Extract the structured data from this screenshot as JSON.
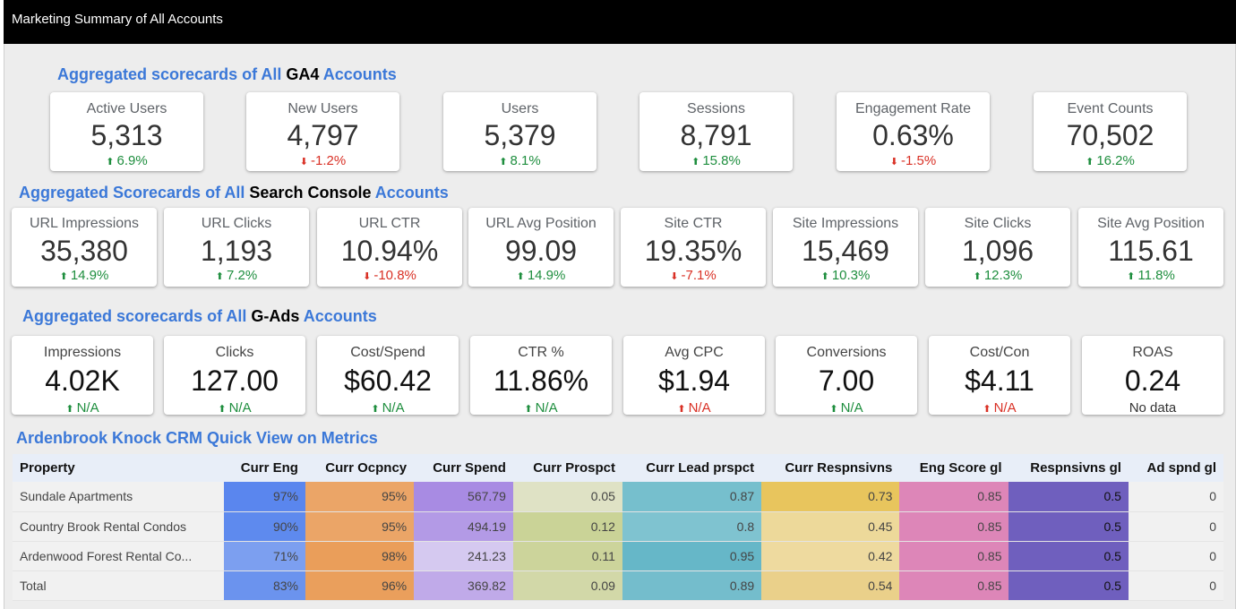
{
  "header": {
    "title": "Marketing Summary of All Accounts"
  },
  "ga4": {
    "title_pre": "Aggregated scorecards of All ",
    "title_hl": "GA4",
    "title_post": " Accounts",
    "cards": [
      {
        "label": "Active Users",
        "value": "5,313",
        "delta": "6.9%",
        "dir": "up"
      },
      {
        "label": "New Users",
        "value": "4,797",
        "delta": "-1.2%",
        "dir": "down"
      },
      {
        "label": "Users",
        "value": "5,379",
        "delta": "8.1%",
        "dir": "up"
      },
      {
        "label": "Sessions",
        "value": "8,791",
        "delta": "15.8%",
        "dir": "up"
      },
      {
        "label": "Engagement Rate",
        "value": "0.63%",
        "delta": "-1.5%",
        "dir": "down"
      },
      {
        "label": "Event Counts",
        "value": "70,502",
        "delta": "16.2%",
        "dir": "up"
      }
    ]
  },
  "gsc": {
    "title_pre": "Aggregated Scorecards of All ",
    "title_hl": "Search Console",
    "title_post": " Accounts",
    "cards": [
      {
        "label": "URL Impressions",
        "value": "35,380",
        "delta": "14.9%",
        "dir": "up"
      },
      {
        "label": "URL Clicks",
        "value": "1,193",
        "delta": "7.2%",
        "dir": "up"
      },
      {
        "label": "URL CTR",
        "value": "10.94%",
        "delta": "-10.8%",
        "dir": "down"
      },
      {
        "label": "URL Avg Position",
        "value": "99.09",
        "delta": "14.9%",
        "dir": "up"
      },
      {
        "label": "Site CTR",
        "value": "19.35%",
        "delta": "-7.1%",
        "dir": "down"
      },
      {
        "label": "Site Impressions",
        "value": "15,469",
        "delta": "10.3%",
        "dir": "up"
      },
      {
        "label": "Site Clicks",
        "value": "1,096",
        "delta": "12.3%",
        "dir": "up"
      },
      {
        "label": "Site Avg Position",
        "value": "115.61",
        "delta": "11.8%",
        "dir": "up"
      }
    ]
  },
  "gads": {
    "title_pre": "Aggregated scorecards of All ",
    "title_hl": "G-Ads",
    "title_post": " Accounts",
    "cards": [
      {
        "label": "Impressions",
        "value": "4.02K",
        "delta": "N/A",
        "dir": "up"
      },
      {
        "label": "Clicks",
        "value": "127.00",
        "delta": "N/A",
        "dir": "up"
      },
      {
        "label": "Cost/Spend",
        "value": "$60.42",
        "delta": "N/A",
        "dir": "up"
      },
      {
        "label": "CTR %",
        "value": "11.86%",
        "delta": "N/A",
        "dir": "up"
      },
      {
        "label": "Avg CPC",
        "value": "$1.94",
        "delta": "N/A",
        "dir": "upred"
      },
      {
        "label": "Conversions",
        "value": "7.00",
        "delta": "N/A",
        "dir": "up"
      },
      {
        "label": "Cost/Con",
        "value": "$4.11",
        "delta": "N/A",
        "dir": "upred"
      },
      {
        "label": "ROAS",
        "value": "0.24",
        "delta": "No data",
        "dir": "neutral"
      }
    ]
  },
  "crm": {
    "title": "Ardenbrook Knock CRM Quick View on Metrics",
    "columns": [
      "Property",
      "Curr Eng",
      "Curr Ocpncy",
      "Curr Spend",
      "Curr Prospct",
      "Curr Lead prspct",
      "Curr Respnsivns",
      "Eng Score gl",
      "Respnsivns gl",
      "Ad spnd gl"
    ],
    "rows": [
      [
        "Sundale Apartments",
        "97%",
        "95%",
        "567.79",
        "0.05",
        "0.87",
        "0.73",
        "0.85",
        "0.5",
        "0"
      ],
      [
        "Country Brook Rental Condos",
        "90%",
        "95%",
        "494.19",
        "0.12",
        "0.8",
        "0.45",
        "0.85",
        "0.5",
        "0"
      ],
      [
        "Ardenwood Forest Rental Co...",
        "71%",
        "98%",
        "241.23",
        "0.11",
        "0.95",
        "0.42",
        "0.85",
        "0.5",
        "0"
      ],
      [
        "Total",
        "83%",
        "96%",
        "369.82",
        "0.09",
        "0.89",
        "0.54",
        "0.85",
        "0.5",
        "0"
      ]
    ],
    "cell_colors": [
      [
        "#f1f1f1",
        "#5a86ee",
        "#eba567",
        "#a88be3",
        "#dfe2c5",
        "#76bfcd",
        "#e8c55d",
        "#dd86b8",
        "#6f5fbe",
        "#f1f1f1"
      ],
      [
        "#f1f1f1",
        "#5e8aee",
        "#eba567",
        "#b39ae6",
        "#cad397",
        "#7fc3d0",
        "#edd99a",
        "#dd86b8",
        "#6f5fbe",
        "#f1f1f1"
      ],
      [
        "#f1f1f1",
        "#7c9ff0",
        "#ea9e5a",
        "#d5c9f0",
        "#ccd49b",
        "#66b7c8",
        "#eeda9f",
        "#dd86b8",
        "#6f5fbe",
        "#f1f1f1"
      ],
      [
        "#f1f1f1",
        "#6b93ee",
        "#ea9f5c",
        "#c0aae9",
        "#d2d8a8",
        "#74bdcc",
        "#ead08a",
        "#dd86b8",
        "#6f5fbe",
        "#f1f1f1"
      ]
    ]
  }
}
